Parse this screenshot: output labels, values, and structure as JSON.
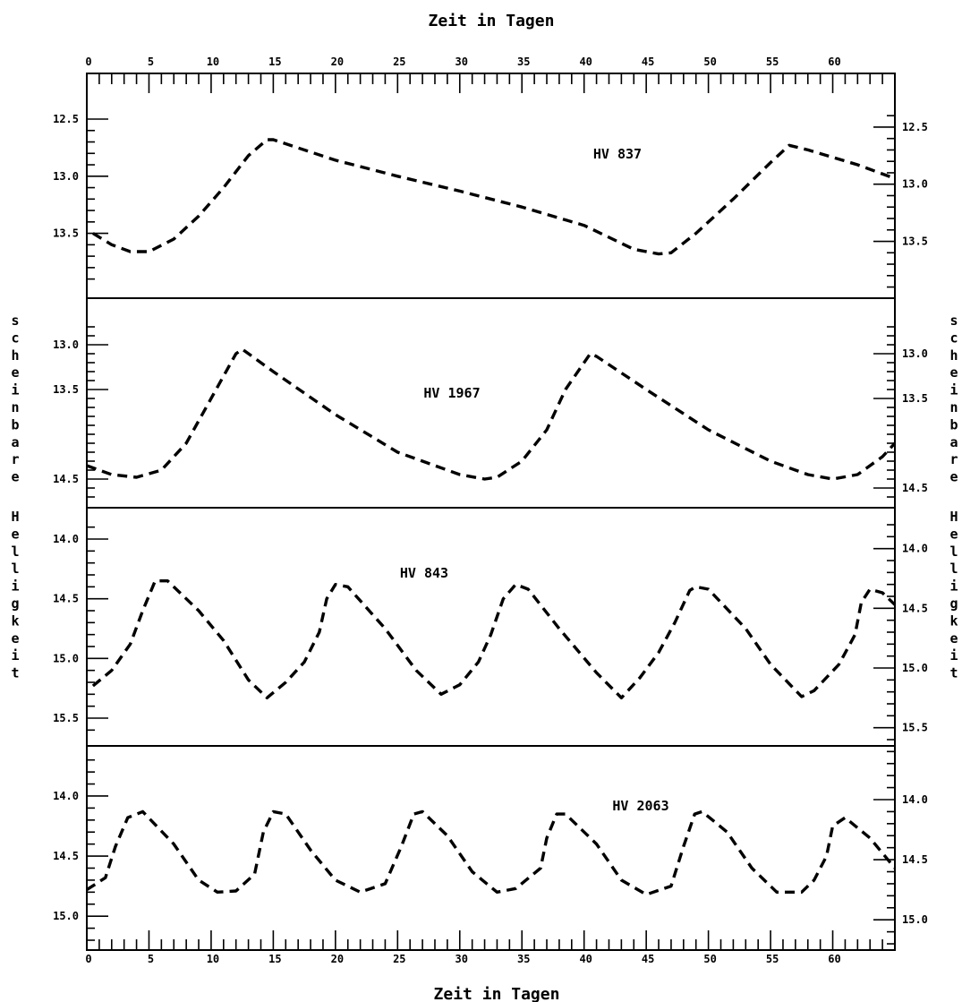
{
  "chart_data": {
    "type": "line",
    "title_top": "Zeit in Tagen",
    "title_bottom": "Zeit in Tagen",
    "ylabel_left": "scheinbare Helligkeit",
    "ylabel_right": "scheinbare Helligkeit",
    "xlim": [
      0,
      65
    ],
    "x_ticks": [
      0,
      5,
      10,
      15,
      20,
      25,
      30,
      35,
      40,
      45,
      50,
      55,
      60
    ],
    "x_tick_labels": [
      "0",
      "5",
      "10",
      "15",
      "20",
      "25",
      "30",
      "35",
      "40",
      "45",
      "50",
      "55",
      "60"
    ],
    "y_inverted": true,
    "line_style": "dashed",
    "panels": [
      {
        "name": "HV 837",
        "ylim": [
          12.5,
          13.95
        ],
        "left_ticks": [
          12.5,
          13.0,
          13.5
        ],
        "left_tick_labels": [
          "12.5",
          "13.0",
          "13.5"
        ],
        "right_ticks": [
          12.5,
          13.0,
          13.5
        ],
        "right_tick_labels": [
          "12.5",
          "13.0",
          "13.5"
        ],
        "right_offset": 0.07,
        "points": [
          [
            0.5,
            13.5
          ],
          [
            2,
            13.6
          ],
          [
            3.5,
            13.66
          ],
          [
            5,
            13.66
          ],
          [
            7,
            13.55
          ],
          [
            9,
            13.35
          ],
          [
            11,
            13.1
          ],
          [
            13,
            12.82
          ],
          [
            14.5,
            12.68
          ],
          [
            15,
            12.68
          ],
          [
            20,
            12.86
          ],
          [
            25,
            13.0
          ],
          [
            30,
            13.13
          ],
          [
            35,
            13.27
          ],
          [
            40,
            13.43
          ],
          [
            44,
            13.64
          ],
          [
            46,
            13.68
          ],
          [
            47,
            13.67
          ],
          [
            49,
            13.5
          ],
          [
            52,
            13.2
          ],
          [
            55,
            12.88
          ],
          [
            56.5,
            12.73
          ],
          [
            58,
            12.77
          ],
          [
            62,
            12.9
          ],
          [
            65,
            13.02
          ]
        ]
      },
      {
        "name": "HV 1967",
        "ylim": [
          12.75,
          14.75
        ],
        "left_ticks": [
          13.0,
          13.5,
          14.5
        ],
        "left_tick_labels": [
          "13.0",
          "13.5",
          "14.5"
        ],
        "right_ticks": [
          13.0,
          13.5,
          14.5
        ],
        "right_tick_labels": [
          "13.0",
          "13.5",
          "14.5"
        ],
        "right_offset": 0.1,
        "points": [
          [
            0,
            14.35
          ],
          [
            2,
            14.45
          ],
          [
            4,
            14.48
          ],
          [
            6,
            14.4
          ],
          [
            8,
            14.1
          ],
          [
            10,
            13.6
          ],
          [
            12,
            13.1
          ],
          [
            12.5,
            13.05
          ],
          [
            15,
            13.3
          ],
          [
            20,
            13.78
          ],
          [
            25,
            14.2
          ],
          [
            30,
            14.45
          ],
          [
            32,
            14.5
          ],
          [
            33,
            14.48
          ],
          [
            35,
            14.3
          ],
          [
            37,
            13.95
          ],
          [
            38.5,
            13.5
          ],
          [
            40.5,
            13.1
          ],
          [
            41,
            13.13
          ],
          [
            45,
            13.5
          ],
          [
            50,
            13.95
          ],
          [
            55,
            14.3
          ],
          [
            58,
            14.45
          ],
          [
            60,
            14.5
          ],
          [
            62,
            14.45
          ],
          [
            64,
            14.25
          ],
          [
            65,
            14.1
          ]
        ]
      },
      {
        "name": "HV 843",
        "ylim": [
          13.85,
          15.65
        ],
        "left_ticks": [
          14.0,
          14.5,
          15.0,
          15.5
        ],
        "left_tick_labels": [
          "14.0",
          "14.5",
          "15.0",
          "15.5"
        ],
        "right_ticks": [
          14.0,
          14.5,
          15.0,
          15.5
        ],
        "right_tick_labels": [
          "14.0",
          "14.5",
          "15.0",
          "15.5"
        ],
        "right_offset": 0.08,
        "points": [
          [
            0.5,
            15.23
          ],
          [
            2,
            15.1
          ],
          [
            3.5,
            14.88
          ],
          [
            4.5,
            14.6
          ],
          [
            5.5,
            14.35
          ],
          [
            6.5,
            14.35
          ],
          [
            9,
            14.6
          ],
          [
            11,
            14.85
          ],
          [
            13,
            15.18
          ],
          [
            14.5,
            15.33
          ],
          [
            16,
            15.2
          ],
          [
            17.5,
            15.03
          ],
          [
            18.7,
            14.78
          ],
          [
            19.3,
            14.5
          ],
          [
            20,
            14.38
          ],
          [
            21,
            14.4
          ],
          [
            24,
            14.75
          ],
          [
            26.5,
            15.1
          ],
          [
            28.5,
            15.3
          ],
          [
            30,
            15.22
          ],
          [
            31.5,
            15.03
          ],
          [
            32.5,
            14.8
          ],
          [
            33.5,
            14.5
          ],
          [
            34.5,
            14.38
          ],
          [
            35.5,
            14.42
          ],
          [
            38,
            14.75
          ],
          [
            41,
            15.12
          ],
          [
            43,
            15.33
          ],
          [
            44.5,
            15.16
          ],
          [
            46,
            14.95
          ],
          [
            47.3,
            14.7
          ],
          [
            48.5,
            14.43
          ],
          [
            49,
            14.4
          ],
          [
            50,
            14.42
          ],
          [
            53,
            14.75
          ],
          [
            55,
            15.05
          ],
          [
            57.5,
            15.32
          ],
          [
            58.5,
            15.27
          ],
          [
            60.5,
            15.05
          ],
          [
            61.8,
            14.8
          ],
          [
            62.3,
            14.53
          ],
          [
            63,
            14.42
          ],
          [
            64,
            14.45
          ],
          [
            65,
            14.55
          ]
        ]
      },
      {
        "name": "HV 2063",
        "ylim": [
          13.65,
          15.2
        ],
        "left_ticks": [
          14.0,
          14.5,
          15.0
        ],
        "left_tick_labels": [
          "14.0",
          "14.5",
          "15.0"
        ],
        "right_ticks": [
          14.0,
          14.5,
          15.0
        ],
        "right_tick_labels": [
          "14.0",
          "14.5",
          "15.0"
        ],
        "right_offset": 0.03,
        "points": [
          [
            0,
            14.78
          ],
          [
            1.5,
            14.68
          ],
          [
            2.3,
            14.42
          ],
          [
            3.3,
            14.18
          ],
          [
            4.5,
            14.13
          ],
          [
            7,
            14.4
          ],
          [
            9,
            14.7
          ],
          [
            10.5,
            14.8
          ],
          [
            12,
            14.79
          ],
          [
            13.5,
            14.65
          ],
          [
            14.2,
            14.3
          ],
          [
            15,
            14.13
          ],
          [
            16,
            14.15
          ],
          [
            18,
            14.45
          ],
          [
            20,
            14.7
          ],
          [
            22,
            14.8
          ],
          [
            24,
            14.73
          ],
          [
            25.3,
            14.42
          ],
          [
            26.3,
            14.15
          ],
          [
            27,
            14.13
          ],
          [
            29,
            14.33
          ],
          [
            31,
            14.63
          ],
          [
            33,
            14.8
          ],
          [
            34.5,
            14.77
          ],
          [
            36.5,
            14.6
          ],
          [
            37,
            14.35
          ],
          [
            37.8,
            14.15
          ],
          [
            38.5,
            14.15
          ],
          [
            41,
            14.4
          ],
          [
            43,
            14.7
          ],
          [
            45,
            14.82
          ],
          [
            47,
            14.75
          ],
          [
            48,
            14.42
          ],
          [
            48.9,
            14.15
          ],
          [
            49.5,
            14.13
          ],
          [
            51.5,
            14.3
          ],
          [
            53.5,
            14.6
          ],
          [
            55.5,
            14.8
          ],
          [
            57.5,
            14.8
          ],
          [
            58.5,
            14.7
          ],
          [
            59.5,
            14.5
          ],
          [
            60,
            14.25
          ],
          [
            61,
            14.18
          ],
          [
            63,
            14.35
          ],
          [
            65,
            14.6
          ]
        ]
      }
    ]
  }
}
